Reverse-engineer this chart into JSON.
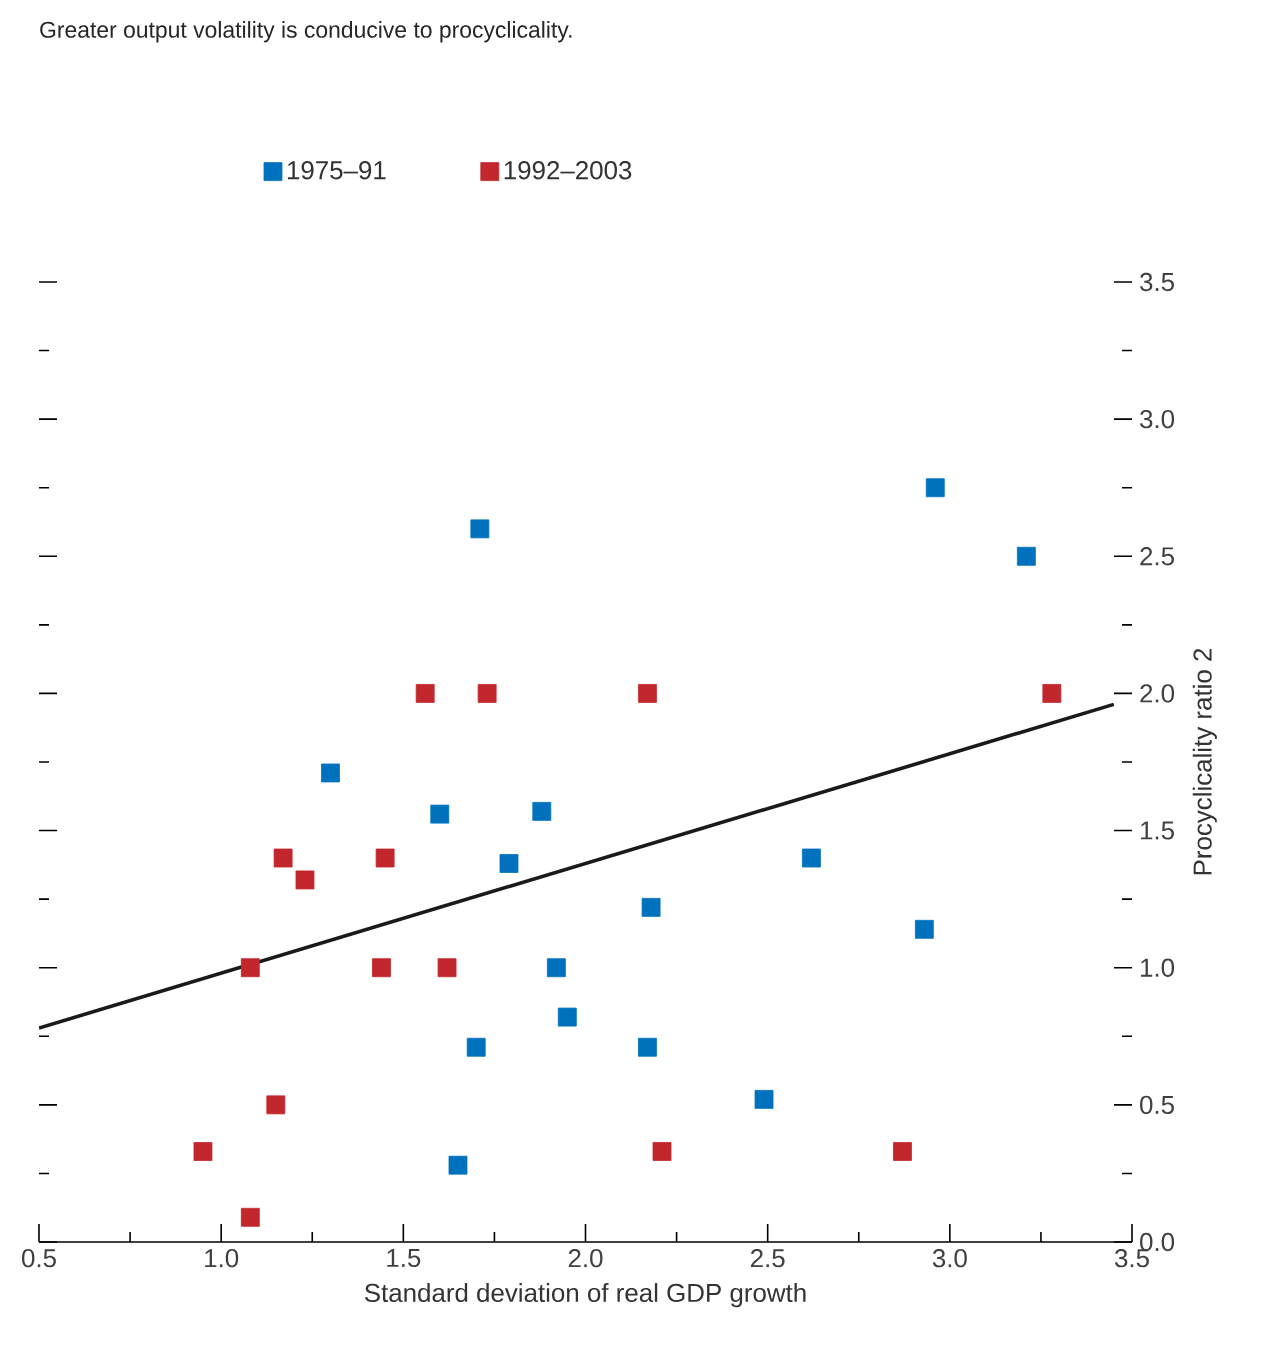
{
  "chart_data": {
    "type": "scatter",
    "title": "Greater output volatility is conducive to procyclicality.",
    "xlabel": "Standard deviation of real GDP growth",
    "ylabel": "Procyclicality ratio 2",
    "marker": "square",
    "legend": "top",
    "grid": false,
    "xlim": [
      0.5,
      3.5
    ],
    "ylim": [
      0,
      3.5
    ],
    "xticks": [
      {
        "value": 0.5,
        "label": "0.5"
      },
      {
        "value": 0.75,
        "label": null
      },
      {
        "value": 1.0,
        "label": "1.0"
      },
      {
        "value": 1.25,
        "label": null
      },
      {
        "value": 1.5,
        "label": "1.5"
      },
      {
        "value": 1.75,
        "label": null
      },
      {
        "value": 2.0,
        "label": "2.0"
      },
      {
        "value": 2.25,
        "label": null
      },
      {
        "value": 2.5,
        "label": "2.5"
      },
      {
        "value": 2.75,
        "label": null
      },
      {
        "value": 3.0,
        "label": "3.0"
      },
      {
        "value": 3.25,
        "label": null
      },
      {
        "value": 3.5,
        "label": "3.5"
      }
    ],
    "yticks": [
      {
        "value": 0,
        "label": "0.0"
      },
      {
        "value": 0.25,
        "label": null
      },
      {
        "value": 0.5,
        "label": "0.5"
      },
      {
        "value": 0.75,
        "label": null
      },
      {
        "value": 1.0,
        "label": "1.0"
      },
      {
        "value": 1.25,
        "label": null
      },
      {
        "value": 1.5,
        "label": "1.5"
      },
      {
        "value": 1.75,
        "label": null
      },
      {
        "value": 2.0,
        "label": "2.0"
      },
      {
        "value": 2.25,
        "label": null
      },
      {
        "value": 2.5,
        "label": "2.5"
      },
      {
        "value": 2.75,
        "label": null
      },
      {
        "value": 3.0,
        "label": "3.0"
      },
      {
        "value": 3.25,
        "label": null
      },
      {
        "value": 3.5,
        "label": "3.5"
      }
    ],
    "series": [
      {
        "name": "1975–91",
        "color": "#0071bc",
        "x": [
          1.3,
          1.71,
          2.96,
          3.21,
          1.6,
          1.88,
          1.79,
          2.62,
          2.18,
          2.93,
          1.92,
          1.95,
          1.7,
          2.17,
          2.49,
          1.65
        ],
        "values": [
          1.71,
          2.6,
          2.75,
          2.5,
          1.56,
          1.57,
          1.38,
          1.4,
          1.22,
          1.14,
          1.0,
          0.82,
          0.71,
          0.71,
          0.52,
          0.28
        ]
      },
      {
        "name": "1992–2003",
        "color": "#c1272d",
        "x": [
          1.56,
          1.73,
          2.17,
          3.28,
          1.17,
          1.23,
          1.45,
          1.08,
          1.44,
          1.62,
          1.15,
          0.95,
          2.21,
          2.87,
          1.08
        ],
        "values": [
          2.0,
          2.0,
          2.0,
          2.0,
          1.4,
          1.32,
          1.4,
          1.0,
          1.0,
          1.0,
          0.5,
          0.33,
          0.33,
          0.33,
          0.09
        ]
      },
      {
        "type": "line",
        "marker": "none",
        "color": "#1a1a1a",
        "x": [
          0.5,
          3.45
        ],
        "values": [
          0.78,
          1.96
        ]
      }
    ]
  }
}
